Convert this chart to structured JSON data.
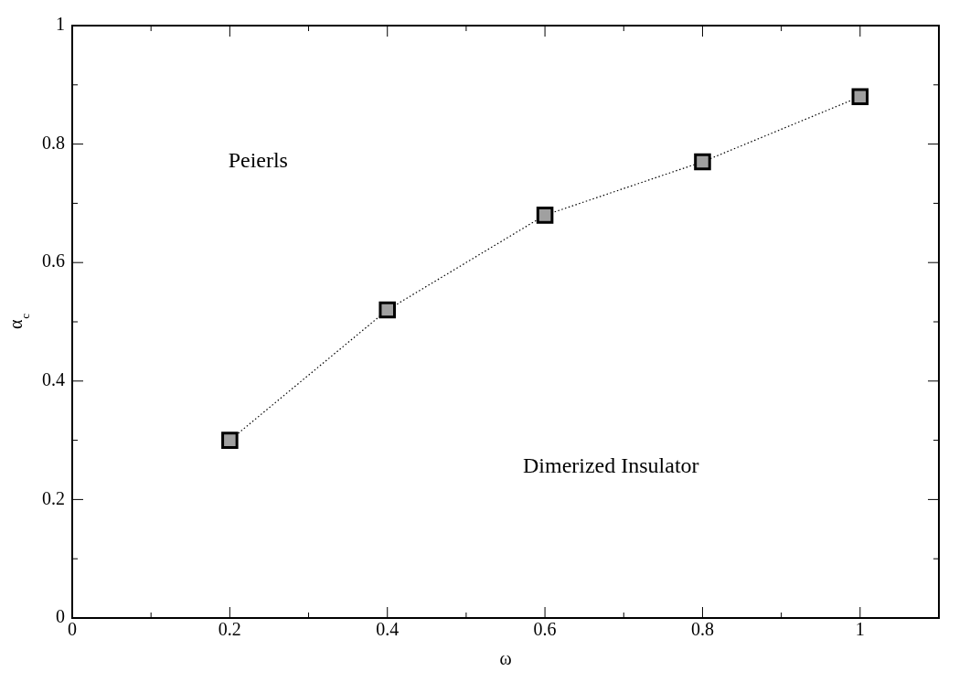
{
  "chart_data": {
    "type": "line",
    "xlabel": "ω",
    "ylabel": "α$_{c}$",
    "x": [
      0.2,
      0.4,
      0.6,
      0.8,
      1
    ],
    "series": [
      {
        "color": "#a0a0a0",
        "values": [
          0.3,
          0.52,
          0.68,
          0.77,
          0.88
        ]
      }
    ],
    "xlim": [
      0,
      1.1
    ],
    "xticks": [
      0,
      0.2,
      0.4,
      0.6,
      0.8,
      1
    ],
    "ylim": [
      0,
      1
    ],
    "yticks": [
      0,
      0.2,
      0.4,
      0.6,
      0.8,
      1
    ],
    "marker": "square",
    "line_style": "dotted",
    "grid": false,
    "legend": false,
    "annotations": [
      "Peierls",
      "Dimerized Insulator"
    ]
  }
}
